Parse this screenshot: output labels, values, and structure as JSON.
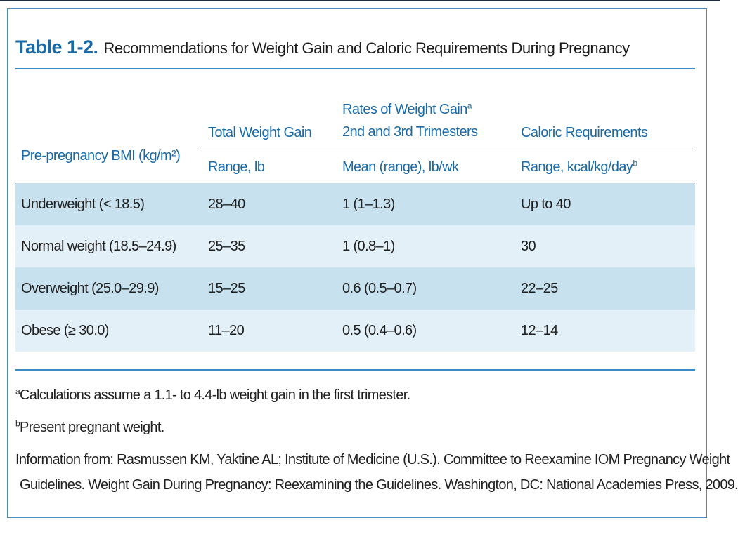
{
  "title": {
    "label": "Table 1-2.",
    "text": "Recommendations for Weight Gain and Caloric Requirements During Pregnancy"
  },
  "header": {
    "col1": "Pre-pregnancy BMI (kg/m²)",
    "col2_top": "Total Weight Gain",
    "col2_sub": "Range, lb",
    "col3_top_line1": "Rates of Weight Gain",
    "col3_top_line1_sup": "a",
    "col3_top_line2": "2nd and 3rd Trimesters",
    "col3_sub": "Mean (range), lb/wk",
    "col4_top": "Caloric Requirements",
    "col4_sub": "Range, kcal/kg/day",
    "col4_sub_sup": "b"
  },
  "rows": [
    {
      "bmi": "Underweight (< 18.5)",
      "total": "28–40",
      "rate": "1 (1–1.3)",
      "caloric": "Up to 40"
    },
    {
      "bmi": "Normal weight (18.5–24.9)",
      "total": "25–35",
      "rate": "1 (0.8–1)",
      "caloric": "30"
    },
    {
      "bmi": "Overweight (25.0–29.9)",
      "total": "15–25",
      "rate": "0.6 (0.5–0.7)",
      "caloric": "22–25"
    },
    {
      "bmi": "Obese (≥ 30.0)",
      "total": "11–20",
      "rate": "0.5 (0.4–0.6)",
      "caloric": "12–14"
    }
  ],
  "footnotes": {
    "a_mark": "a",
    "a_text": "Calculations assume a 1.1- to 4.4-lb weight gain in the first trimester.",
    "b_mark": "b",
    "b_text": "Present pregnant weight.",
    "source_line1": "Information from: Rasmussen KM, Yaktine AL; Institute of Medicine (U.S.). Committee to Reexamine IOM Pregnancy Weight",
    "source_line2": "Guidelines. Weight Gain During Pregnancy: Reexamining the Guidelines. Washington, DC: National Academies Press, 2009."
  }
}
